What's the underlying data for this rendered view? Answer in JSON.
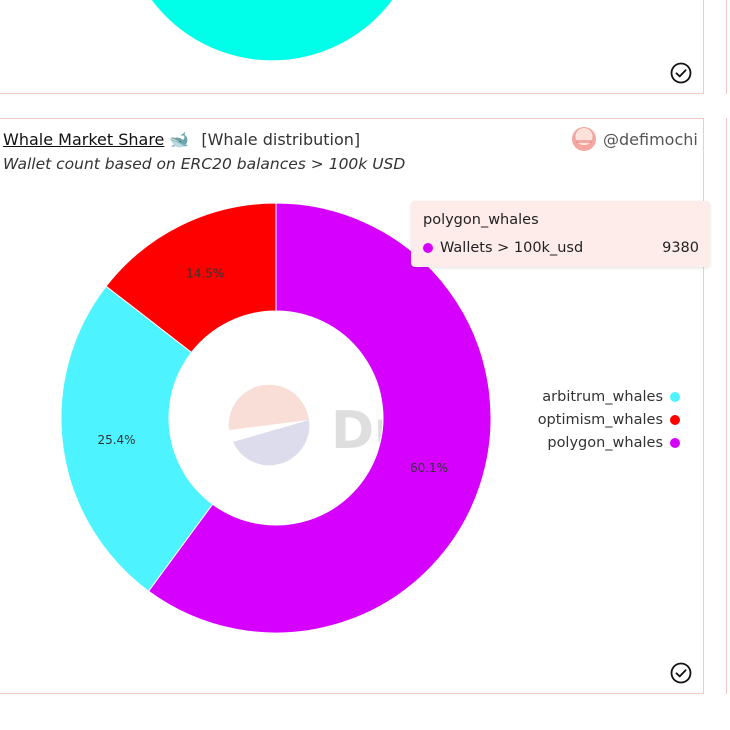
{
  "card": {
    "title": "Whale Market Share",
    "title_icon": "whale-icon",
    "visualization_name": "[Whale distribution]",
    "subtitle": "Wallet count based on ERC20 balances > 100k USD",
    "author": "@defimochi"
  },
  "colors": {
    "arbitrum": "#4df3ff",
    "optimism": "#ff0000",
    "polygon": "#d600ff",
    "top_chart": "#00ffe8",
    "border": "#f2c9c2",
    "tooltip_bg": "#fdecea"
  },
  "watermark": "Dune",
  "tooltip": {
    "title": "polygon_whales",
    "series_label": "Wallets > 100k_usd",
    "value": "9380"
  },
  "chart_data": {
    "type": "pie",
    "donut": true,
    "labels": [
      "arbitrum_whales",
      "optimism_whales",
      "polygon_whales"
    ],
    "percent_labels": [
      "25.4%",
      "14.5%",
      "60.1%"
    ],
    "values": [
      25.4,
      14.5,
      60.1
    ],
    "legend": [
      "arbitrum_whales",
      "optimism_whales",
      "polygon_whales"
    ],
    "legend_position": "right"
  }
}
